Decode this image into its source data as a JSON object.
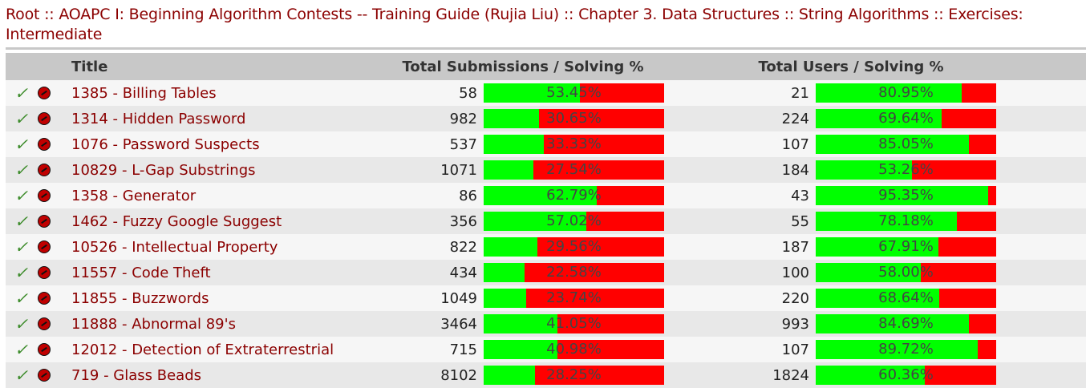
{
  "breadcrumb": {
    "root": "Root",
    "sep": " :: ",
    "book": "AOAPC I: Beginning Algorithm Contests -- Training Guide (Rujia Liu)",
    "chapter": "Chapter 3. Data Structures",
    "section": "String Algorithms",
    "subsection": "Exercises: Intermediate"
  },
  "table": {
    "headers": {
      "title": "Title",
      "submissions": "Total Submissions / Solving %",
      "users": "Total Users / Solving %"
    },
    "rows": [
      {
        "title": "1385 - Billing Tables",
        "submissions": "58",
        "sub_pct": "53.45%",
        "sub_frac": 0.5345,
        "users": "21",
        "user_pct": "80.95%",
        "user_frac": 0.8095
      },
      {
        "title": "1314 - Hidden Password",
        "submissions": "982",
        "sub_pct": "30.65%",
        "sub_frac": 0.3065,
        "users": "224",
        "user_pct": "69.64%",
        "user_frac": 0.6964
      },
      {
        "title": "1076 - Password Suspects",
        "submissions": "537",
        "sub_pct": "33.33%",
        "sub_frac": 0.3333,
        "users": "107",
        "user_pct": "85.05%",
        "user_frac": 0.8505
      },
      {
        "title": "10829 - L-Gap Substrings",
        "submissions": "1071",
        "sub_pct": "27.54%",
        "sub_frac": 0.2754,
        "users": "184",
        "user_pct": "53.26%",
        "user_frac": 0.5326
      },
      {
        "title": "1358 - Generator",
        "submissions": "86",
        "sub_pct": "62.79%",
        "sub_frac": 0.6279,
        "users": "43",
        "user_pct": "95.35%",
        "user_frac": 0.9535
      },
      {
        "title": "1462 - Fuzzy Google Suggest",
        "submissions": "356",
        "sub_pct": "57.02%",
        "sub_frac": 0.5702,
        "users": "55",
        "user_pct": "78.18%",
        "user_frac": 0.7818
      },
      {
        "title": "10526 - Intellectual Property",
        "submissions": "822",
        "sub_pct": "29.56%",
        "sub_frac": 0.2956,
        "users": "187",
        "user_pct": "67.91%",
        "user_frac": 0.6791
      },
      {
        "title": "11557 - Code Theft",
        "submissions": "434",
        "sub_pct": "22.58%",
        "sub_frac": 0.2258,
        "users": "100",
        "user_pct": "58.00%",
        "user_frac": 0.58
      },
      {
        "title": "11855 - Buzzwords",
        "submissions": "1049",
        "sub_pct": "23.74%",
        "sub_frac": 0.2374,
        "users": "220",
        "user_pct": "68.64%",
        "user_frac": 0.6864
      },
      {
        "title": "11888 - Abnormal 89's",
        "submissions": "3464",
        "sub_pct": "41.05%",
        "sub_frac": 0.4105,
        "users": "993",
        "user_pct": "84.69%",
        "user_frac": 0.8469
      },
      {
        "title": "12012 - Detection of Extraterrestrial",
        "submissions": "715",
        "sub_pct": "40.98%",
        "sub_frac": 0.4098,
        "users": "107",
        "user_pct": "89.72%",
        "user_frac": 0.8972
      },
      {
        "title": "719 - Glass Beads",
        "submissions": "8102",
        "sub_pct": "28.25%",
        "sub_frac": 0.2825,
        "users": "1824",
        "user_pct": "60.36%",
        "user_frac": 0.6036
      }
    ]
  },
  "icons": {
    "solved": "check-icon",
    "solve": "solve-icon"
  },
  "colors": {
    "link": "#8b0000",
    "bar_solved": "#00ff00",
    "bar_unsolved": "#ff0000",
    "header_bg": "#c8c8c8"
  }
}
